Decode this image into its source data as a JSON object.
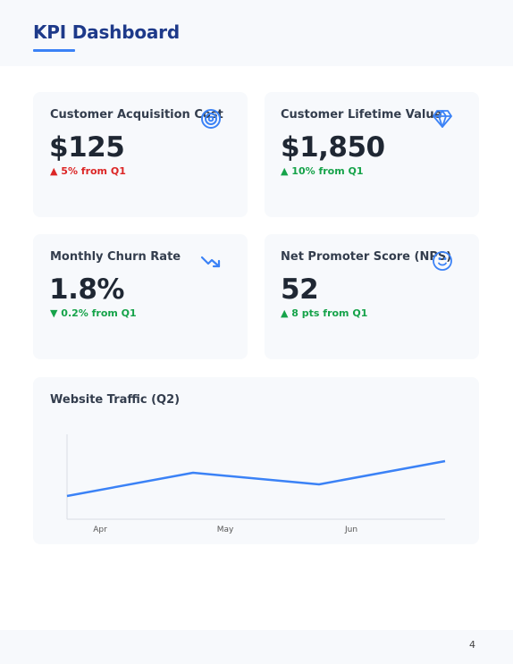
{
  "header": {
    "title": "KPI Dashboard"
  },
  "kpis": [
    {
      "title": "Customer Acquisition Cost",
      "value": "$125",
      "delta": "▲ 5% from Q1",
      "trend": "negative",
      "icon": "target-icon"
    },
    {
      "title": "Customer Lifetime Value",
      "value": "$1,850",
      "delta": "▲ 10% from Q1",
      "trend": "positive",
      "icon": "diamond-icon"
    },
    {
      "title": "Monthly Churn Rate",
      "value": "1.8%",
      "delta": "▼ 0.2% from Q1",
      "trend": "positive",
      "icon": "trending-down-icon"
    },
    {
      "title": "Net Promoter Score (NPS)",
      "value": "52",
      "delta": "▲ 8 pts from Q1",
      "trend": "positive",
      "icon": "smile-icon"
    }
  ],
  "colors": {
    "accent": "#3b82f6",
    "title": "#1e3a8a",
    "negative": "#dc2626",
    "positive": "#16a34a",
    "card_bg": "#f7f9fc"
  },
  "chart": {
    "title": "Website Traffic (Q2)"
  },
  "chart_data": {
    "type": "line",
    "title": "Website Traffic (Q2)",
    "categories": [
      "Apr",
      "May",
      "Jun"
    ],
    "x": [
      0,
      1,
      2,
      3
    ],
    "values": [
      40,
      80,
      60,
      100
    ],
    "ylim": [
      0,
      100
    ],
    "xlabel": "",
    "ylabel": "",
    "grid": false,
    "legend": "none",
    "color": "#3b82f6"
  },
  "footer": {
    "page": "4"
  }
}
